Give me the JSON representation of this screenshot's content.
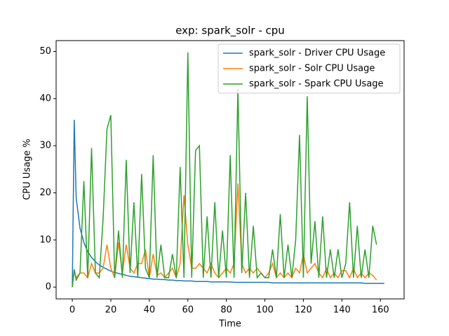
{
  "chart_data": {
    "type": "line",
    "title": "exp: spark_solr - cpu",
    "x_label": "Time",
    "y_label": "CPU Usage %",
    "x": [
      0,
      1,
      2,
      4,
      6,
      8,
      10,
      12,
      14,
      16,
      18,
      20,
      22,
      24,
      26,
      28,
      30,
      32,
      34,
      36,
      38,
      40,
      42,
      44,
      46,
      48,
      50,
      52,
      54,
      56,
      58,
      60,
      62,
      64,
      66,
      68,
      70,
      72,
      74,
      76,
      78,
      80,
      82,
      84,
      86,
      88,
      90,
      92,
      94,
      96,
      98,
      100,
      102,
      104,
      106,
      108,
      110,
      112,
      114,
      116,
      118,
      120,
      122,
      124,
      126,
      128,
      130,
      132,
      134,
      136,
      138,
      140,
      142,
      144,
      146,
      148,
      150,
      152,
      154,
      156,
      158,
      160,
      162
    ],
    "series": [
      {
        "name": "spark_solr - Driver CPU Usage",
        "color": "#1f77b4",
        "values": [
          0,
          35.5,
          19,
          12.5,
          9.5,
          7.5,
          6.3,
          5.4,
          4.7,
          4.2,
          3.8,
          3.4,
          3.1,
          2.9,
          2.7,
          2.5,
          2.3,
          2.2,
          2.1,
          2,
          1.9,
          1.8,
          1.7,
          1.7,
          1.6,
          1.6,
          1.5,
          1.5,
          1.4,
          1.4,
          1.3,
          1.3,
          1.3,
          1.2,
          1.2,
          1.2,
          1.2,
          1.1,
          1.1,
          1.1,
          1.1,
          1.1,
          1.1,
          1.0,
          1.0,
          1.0,
          1.0,
          1.0,
          1.0,
          1.0,
          1.0,
          1.0,
          1.0,
          0.9,
          0.9,
          0.9,
          0.9,
          0.9,
          0.9,
          0.9,
          0.9,
          0.9,
          0.9,
          0.9,
          0.9,
          0.9,
          0.9,
          0.9,
          0.9,
          0.9,
          0.9,
          0.9,
          0.9,
          0.9,
          0.9,
          0.9,
          0.9,
          0.8,
          0.8,
          0.8,
          0.8,
          0.8,
          0.8
        ]
      },
      {
        "name": "spark_solr - Solr CPU Usage",
        "color": "#ff7f0e",
        "values": [
          0,
          3.5,
          2,
          3,
          3,
          2,
          5,
          3,
          3,
          4,
          9,
          4,
          2,
          9.5,
          3,
          9,
          4,
          3,
          5,
          5,
          8,
          2,
          7,
          2.5,
          3,
          2,
          3,
          4,
          2,
          5,
          19.5,
          9,
          4,
          4,
          5,
          4,
          3,
          5,
          3,
          2,
          3,
          4,
          3,
          5,
          22,
          5,
          3,
          4,
          3,
          4,
          3,
          2,
          3,
          5,
          2,
          3,
          2,
          3,
          2,
          4,
          3,
          7,
          3,
          4,
          5,
          3,
          2,
          4,
          2,
          3,
          2,
          3.5,
          3.5,
          2,
          4,
          2,
          3,
          2,
          3,
          2.5,
          1.5,
          null,
          null
        ]
      },
      {
        "name": "spark_solr - Spark CPU Usage",
        "color": "#2ca02c",
        "values": [
          0,
          3.8,
          1.5,
          3,
          22.5,
          2,
          29.5,
          3,
          2,
          14.5,
          33.5,
          36.5,
          2,
          12,
          2,
          27,
          3,
          18,
          2,
          24,
          4,
          2,
          28,
          2,
          9,
          2,
          2,
          7,
          2,
          25.5,
          2,
          49.8,
          2,
          29,
          30,
          2,
          15,
          2,
          18,
          2,
          12,
          2,
          28,
          2,
          42,
          3,
          20,
          2,
          13,
          2,
          3,
          2,
          2,
          8,
          2,
          15.5,
          2,
          9,
          2,
          10,
          32.3,
          2,
          40.5,
          5,
          14,
          2,
          15,
          2,
          8,
          2,
          8,
          2,
          5,
          18,
          2,
          13,
          2,
          8,
          2,
          13,
          9,
          null,
          null
        ]
      }
    ],
    "xlim": [
      -8.4,
      172.3
    ],
    "ylim": [
      -2.5,
      52.3
    ],
    "xticks": [
      0,
      20,
      40,
      60,
      80,
      100,
      120,
      140,
      160
    ],
    "yticks": [
      0,
      10,
      20,
      30,
      40,
      50
    ],
    "legend": "upper right"
  }
}
